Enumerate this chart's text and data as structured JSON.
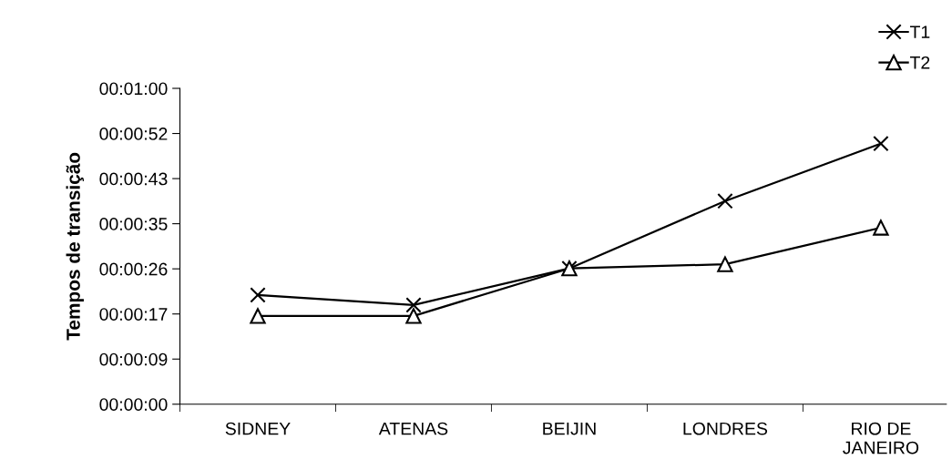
{
  "chart_data": {
    "type": "line",
    "ylabel": "Tempos de transição",
    "categories": [
      "SIDNEY",
      "ATENAS",
      "BEIJIN",
      "LONDRES",
      "RIO DE JANEIRO"
    ],
    "series": [
      {
        "name": "T1",
        "color": "#000000",
        "marker": "cross",
        "values": [
          20.9,
          19.0,
          26.0,
          38.9,
          49.9
        ]
      },
      {
        "name": "T2",
        "color": "#000000",
        "marker": "triangle",
        "values": [
          16.9,
          16.9,
          26.0,
          26.8,
          33.8
        ]
      }
    ],
    "ylim": [
      0,
      60.48
    ],
    "yticks": [
      {
        "value": 0,
        "label": "00:00:00"
      },
      {
        "value": 8.64,
        "label": "00:00:09"
      },
      {
        "value": 17.28,
        "label": "00:00:17"
      },
      {
        "value": 25.92,
        "label": "00:00:26"
      },
      {
        "value": 34.56,
        "label": "00:00:35"
      },
      {
        "value": 43.2,
        "label": "00:00:43"
      },
      {
        "value": 51.84,
        "label": "00:00:52"
      },
      {
        "value": 60.48,
        "label": "00:01:00"
      }
    ],
    "grid": false,
    "legend": "top right",
    "line_style": "solid"
  }
}
